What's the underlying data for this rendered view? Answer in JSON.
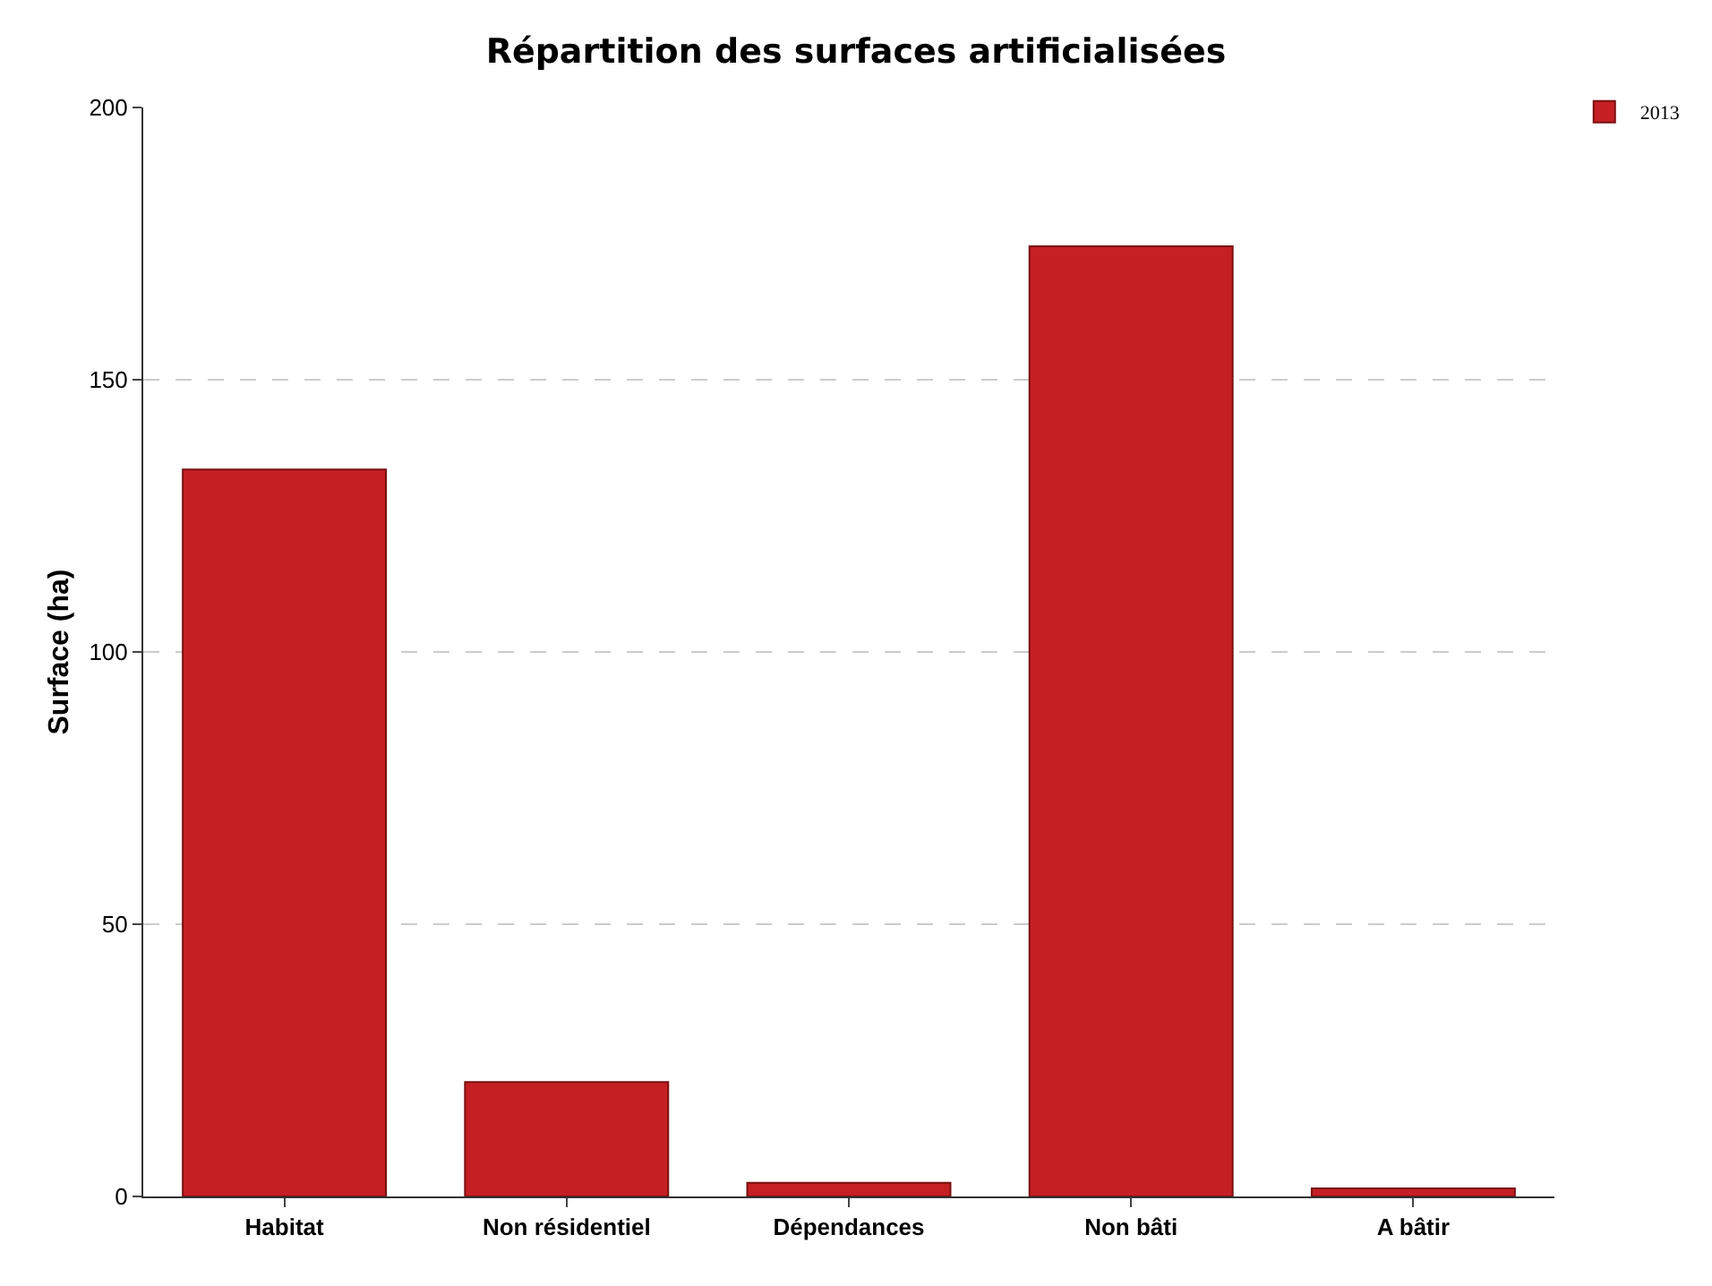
{
  "chart_data": {
    "type": "bar",
    "title": "Répartition des surfaces artificialisées",
    "ylabel": "Surface (ha)",
    "categories": [
      "Habitat",
      "Non résidentiel",
      "Dépendances",
      "Non bâti",
      "A bâtir"
    ],
    "series": [
      {
        "name": "2013",
        "color": "#c42024",
        "values": [
          133.5,
          21,
          2.5,
          174.5,
          1.5
        ]
      }
    ],
    "ylim": [
      0,
      200
    ],
    "yticks": [
      0,
      50,
      100,
      150,
      200
    ],
    "grid": "y",
    "legend": "top right"
  }
}
